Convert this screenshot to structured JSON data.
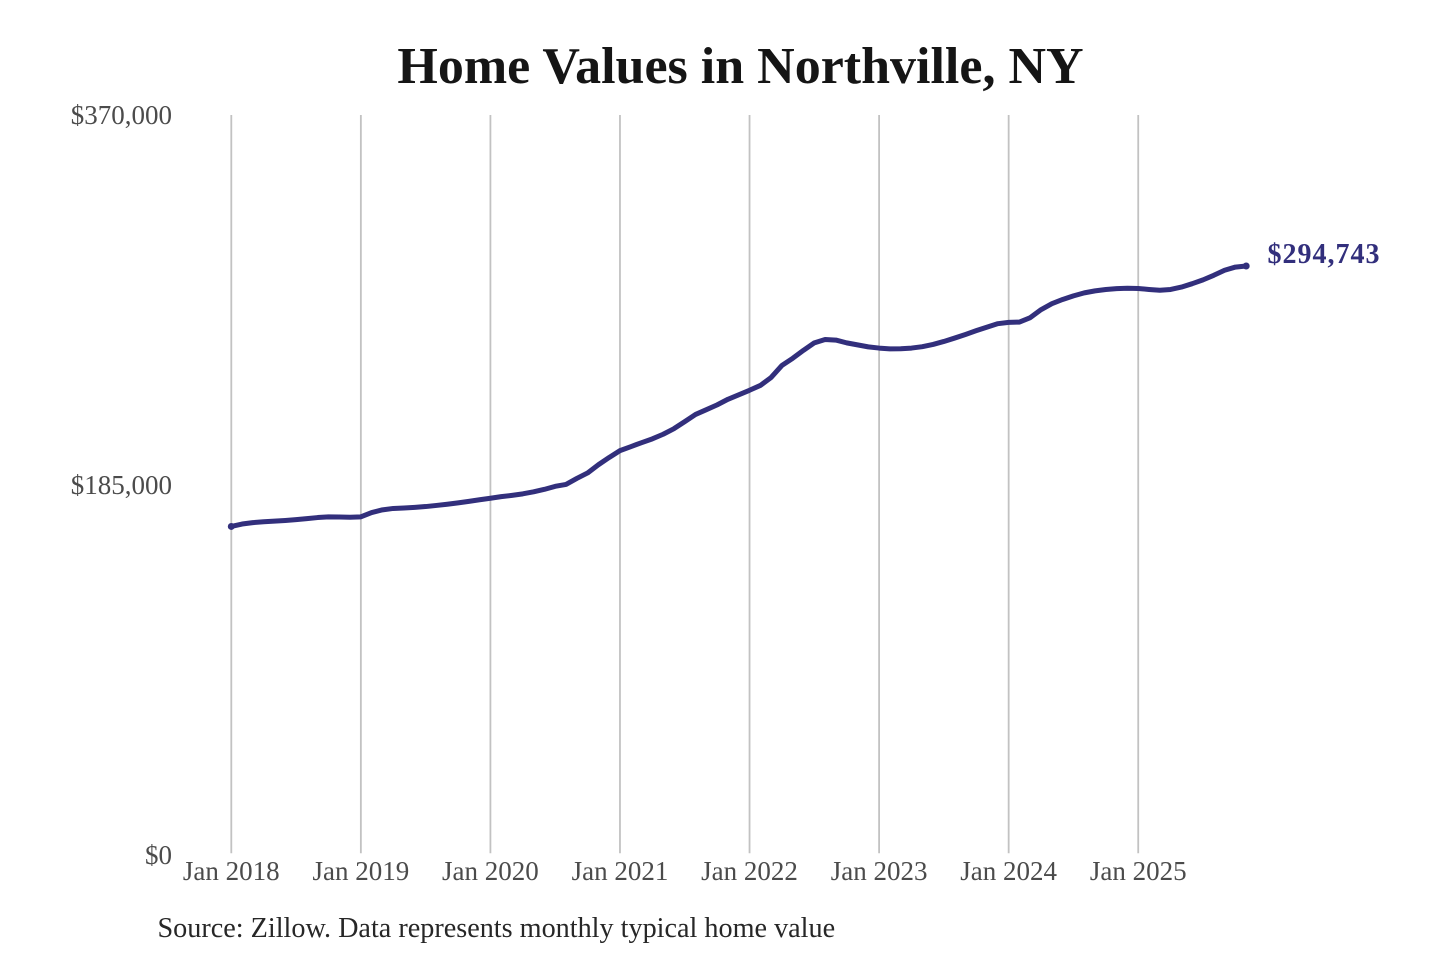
{
  "title": "Home Values in Northville, NY",
  "source_note": "Source: Zillow. Data represents monthly typical home value",
  "end_label": "$294,743",
  "colors": {
    "line": "#322f7c",
    "end_label": "#322f7c",
    "grid": "#c2c2c2",
    "axis_text": "#4b4b4b",
    "title_text": "#151515",
    "source_text": "#272727",
    "background": "#ffffff"
  },
  "chart_data": {
    "type": "line",
    "title": "Home Values in Northville, NY",
    "xlabel": "",
    "ylabel": "",
    "x_start": "2018-01",
    "x_end": "2025-11",
    "interval": "monthly",
    "ylim": [
      0,
      370000
    ],
    "y_ticks": [
      {
        "value": 0,
        "label": "$0"
      },
      {
        "value": 185000,
        "label": "$185,000"
      },
      {
        "value": 370000,
        "label": "$370,000"
      }
    ],
    "x_ticks": [
      {
        "month_index": 0,
        "label": "Jan 2018"
      },
      {
        "month_index": 12,
        "label": "Jan 2019"
      },
      {
        "month_index": 24,
        "label": "Jan 2020"
      },
      {
        "month_index": 36,
        "label": "Jan 2021"
      },
      {
        "month_index": 48,
        "label": "Jan 2022"
      },
      {
        "month_index": 60,
        "label": "Jan 2023"
      },
      {
        "month_index": 72,
        "label": "Jan 2024"
      },
      {
        "month_index": 84,
        "label": "Jan 2025"
      }
    ],
    "grid": "vertical-only",
    "legend": "none",
    "last_value_annotation": "$294,743",
    "series": [
      {
        "name": "Typical home value",
        "values": [
          164500,
          165700,
          166400,
          166850,
          167150,
          167500,
          167900,
          168400,
          168950,
          169300,
          169250,
          169100,
          169300,
          171450,
          172800,
          173500,
          173750,
          174050,
          174450,
          175000,
          175600,
          176300,
          177050,
          177850,
          178600,
          179400,
          180050,
          180800,
          181800,
          183050,
          184550,
          185500,
          188500,
          191250,
          195350,
          199000,
          202400,
          204400,
          206400,
          208300,
          210600,
          213400,
          216900,
          220500,
          222900,
          225300,
          228100,
          230350,
          232600,
          235000,
          239000,
          245000,
          248600,
          252600,
          256300,
          258000,
          257700,
          256300,
          255300,
          254300,
          253700,
          253300,
          253350,
          253700,
          254400,
          255500,
          257000,
          258700,
          260500,
          262400,
          264200,
          265900,
          266550,
          266700,
          268900,
          272900,
          275900,
          278000,
          279800,
          281300,
          282300,
          283000,
          283400,
          283600,
          283500,
          283000,
          282600,
          283000,
          284200,
          285900,
          287800,
          290100,
          292600,
          294200,
          294743
        ]
      }
    ]
  }
}
